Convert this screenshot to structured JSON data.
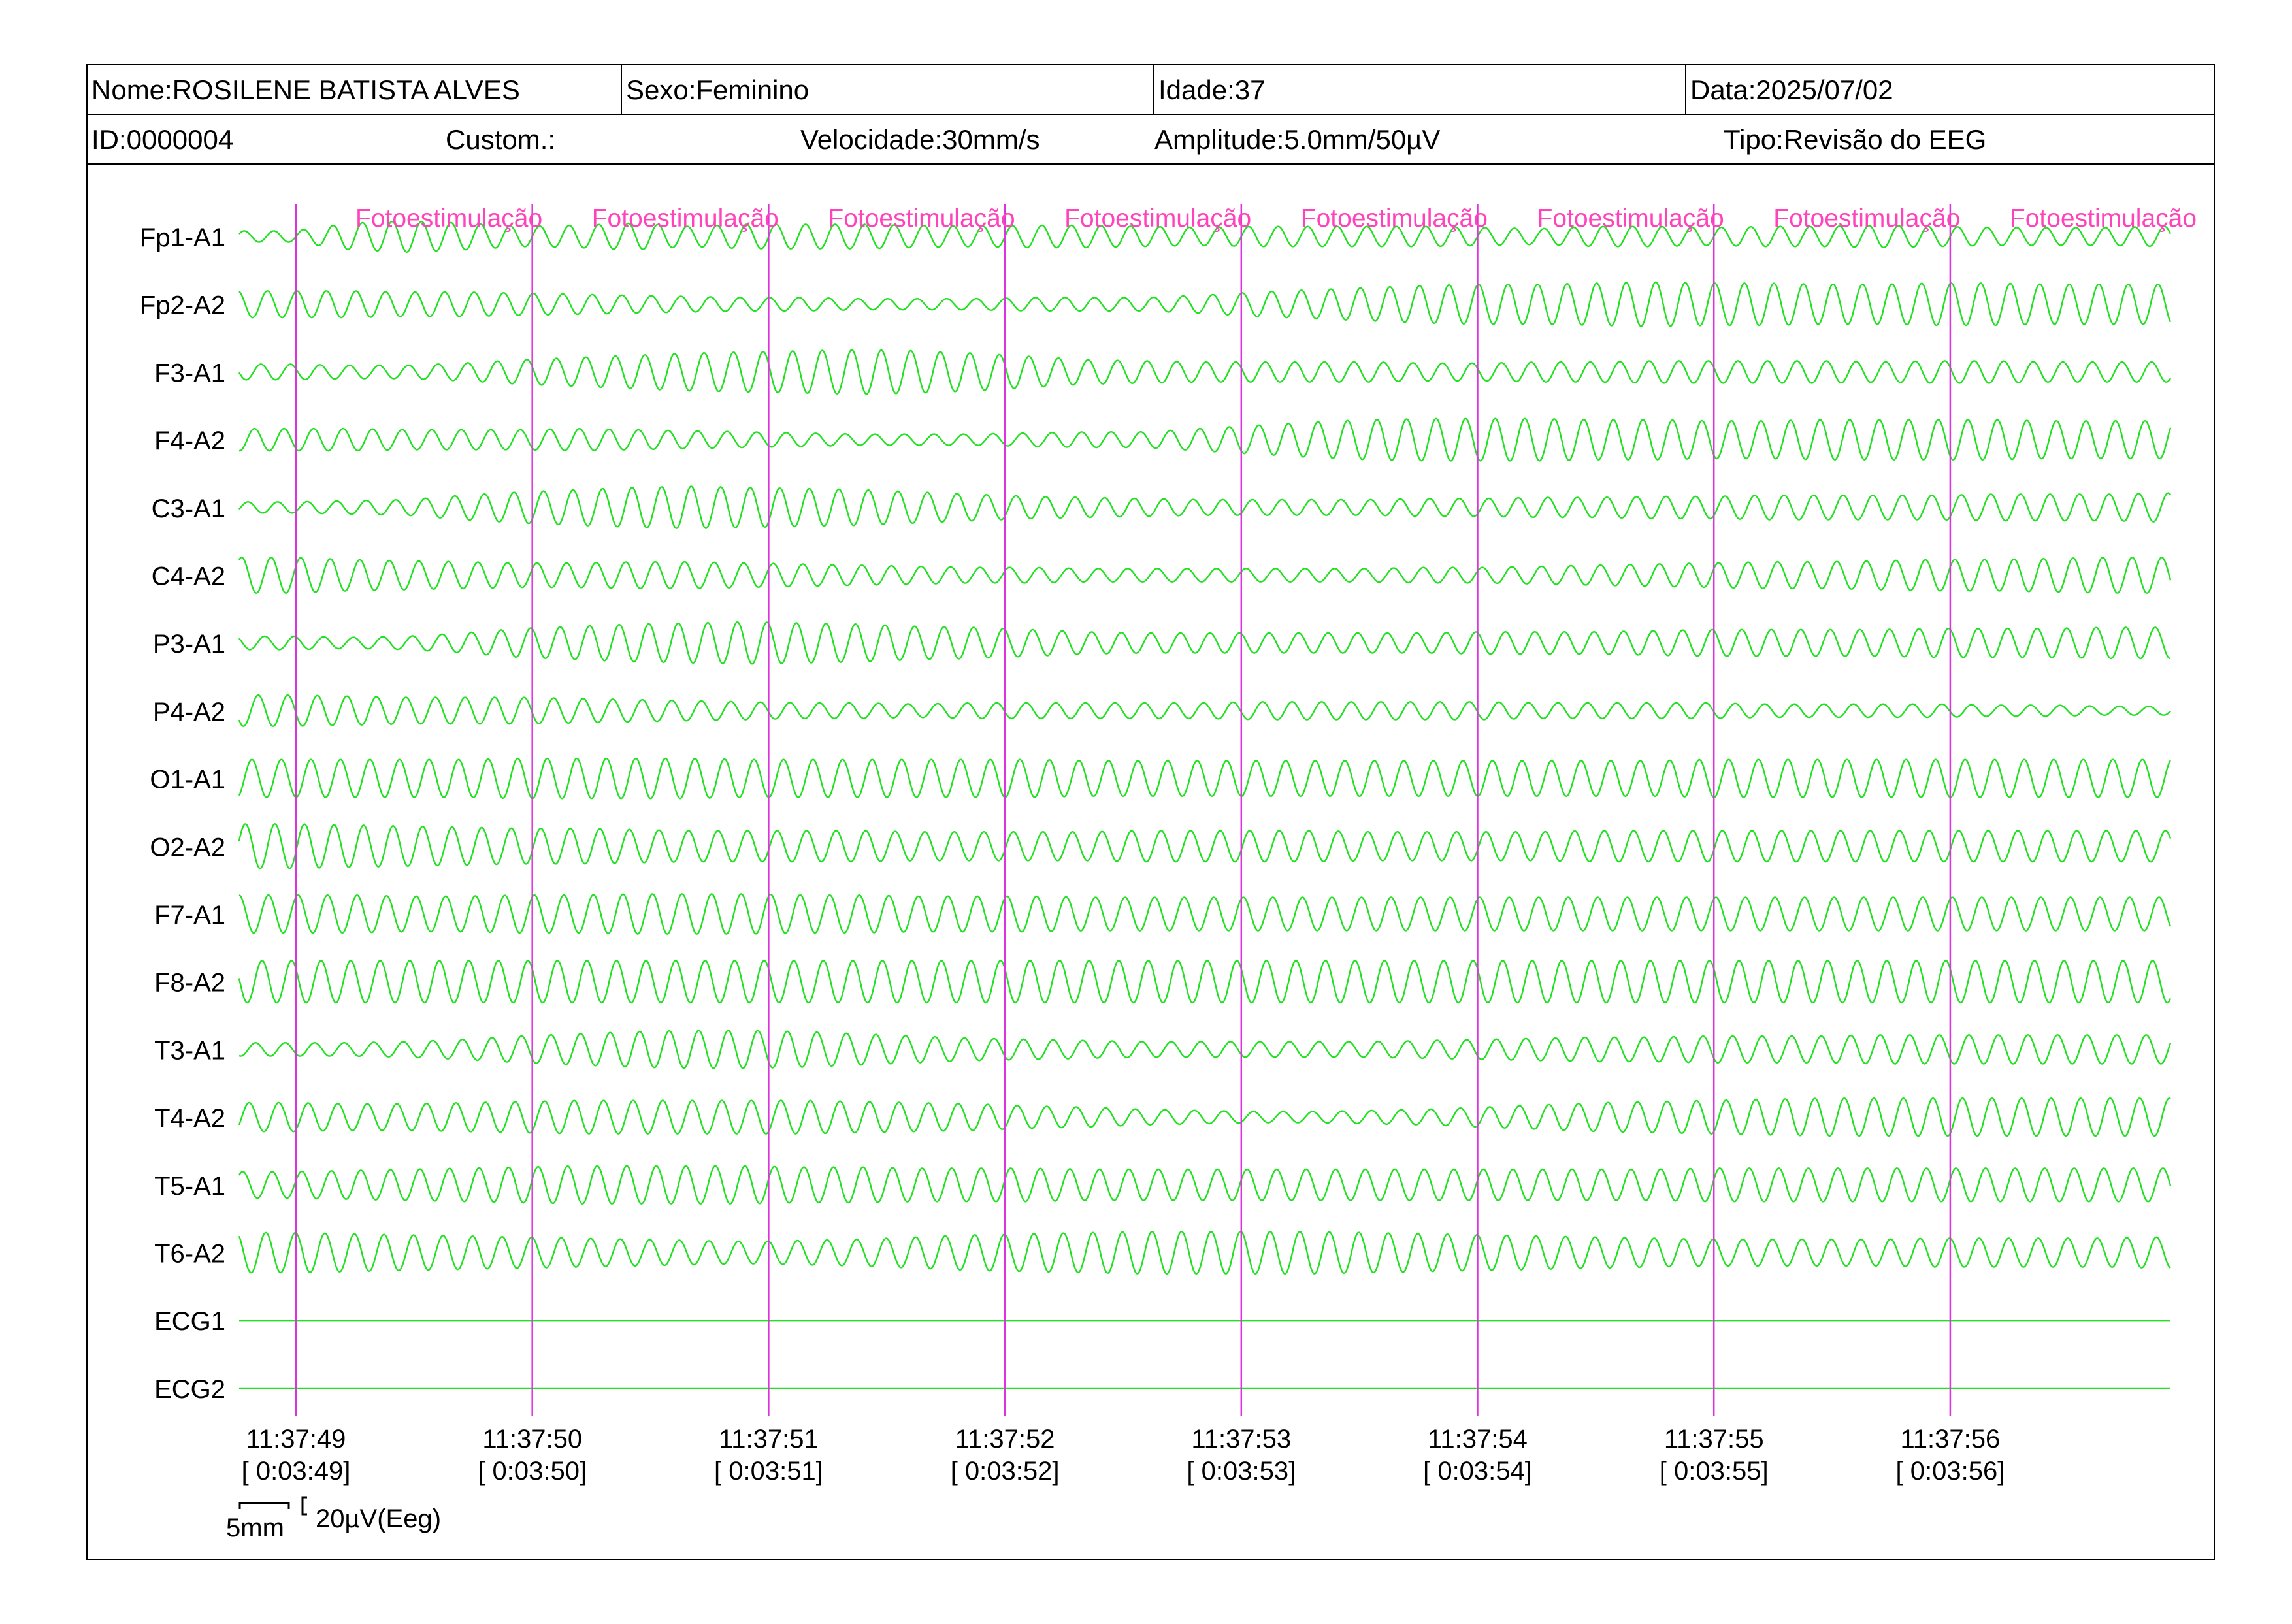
{
  "header": {
    "nome": "Nome:ROSILENE BATISTA ALVES",
    "sexo": "Sexo:Feminino",
    "idade": "Idade:37",
    "data": "Data:2025/07/02",
    "id": "ID:0000004",
    "custom": "Custom.:",
    "velocidade": "Velocidade:30mm/s",
    "amplitude": "Amplitude:5.0mm/50µV",
    "tipo": "Tipo:Revisão do EEG"
  },
  "colors": {
    "trace": "#22e022",
    "marker": "#dd33dd",
    "marker_label": "#ff44bb",
    "text": "#000000",
    "background": "#ffffff"
  },
  "chart_data": {
    "type": "line",
    "title": "",
    "xlabel": "",
    "ylabel": "",
    "channels": [
      "Fp1-A1",
      "Fp2-A2",
      "F3-A1",
      "F4-A2",
      "C3-A1",
      "C4-A2",
      "P3-A1",
      "P4-A2",
      "O1-A1",
      "O2-A2",
      "F7-A1",
      "F8-A2",
      "T3-A1",
      "T4-A2",
      "T5-A1",
      "T6-A2",
      "ECG1",
      "ECG2"
    ],
    "time_ticks": [
      {
        "clock": "11:37:49",
        "elapsed": "[ 0:03:49]"
      },
      {
        "clock": "11:37:50",
        "elapsed": "[ 0:03:50]"
      },
      {
        "clock": "11:37:51",
        "elapsed": "[ 0:03:51]"
      },
      {
        "clock": "11:37:52",
        "elapsed": "[ 0:03:52]"
      },
      {
        "clock": "11:37:53",
        "elapsed": "[ 0:03:53]"
      },
      {
        "clock": "11:37:54",
        "elapsed": "[ 0:03:54]"
      },
      {
        "clock": "11:37:55",
        "elapsed": "[ 0:03:55]"
      },
      {
        "clock": "11:37:56",
        "elapsed": "[ 0:03:56]"
      }
    ],
    "event_label": "Fotoestimulação",
    "scale_bar": {
      "time": "5mm",
      "amplitude": "20µV(Eeg)"
    },
    "waveform": {
      "frequency_hz": 8,
      "seconds_before_first_tick": 0.25,
      "seconds_after_last_tick": 0.9
    },
    "channel_amplitudes_relative": [
      [
        0.25,
        0.25,
        0.6,
        0.7,
        0.6,
        0.45,
        0.5,
        0.6,
        0.45,
        0.55,
        0.55,
        0.55,
        0.5,
        0.45,
        0.5,
        0.5,
        0.45,
        0.4,
        0.45,
        0.45,
        0.45,
        0.45,
        0.4,
        0.35,
        0.45,
        0.45,
        0.4,
        0.45,
        0.45,
        0.5,
        0.45,
        0.4,
        0.4,
        0.4,
        0.45
      ],
      [
        0.6,
        0.6,
        0.6,
        0.55,
        0.55,
        0.5,
        0.45,
        0.4,
        0.35,
        0.3,
        0.3,
        0.25,
        0.25,
        0.25,
        0.3,
        0.3,
        0.3,
        0.4,
        0.55,
        0.65,
        0.75,
        0.85,
        0.9,
        0.9,
        0.95,
        1.0,
        0.95,
        0.95,
        0.9,
        0.9,
        0.95,
        0.95,
        0.9,
        0.9,
        0.9
      ],
      [
        0.35,
        0.35,
        0.3,
        0.3,
        0.4,
        0.55,
        0.65,
        0.75,
        0.85,
        0.9,
        0.95,
        1.0,
        0.95,
        0.85,
        0.7,
        0.55,
        0.5,
        0.45,
        0.45,
        0.45,
        0.45,
        0.4,
        0.4,
        0.45,
        0.45,
        0.5,
        0.5,
        0.5,
        0.5,
        0.45,
        0.5,
        0.5,
        0.45,
        0.45,
        0.45
      ],
      [
        0.5,
        0.5,
        0.5,
        0.45,
        0.45,
        0.45,
        0.5,
        0.45,
        0.4,
        0.35,
        0.3,
        0.25,
        0.25,
        0.25,
        0.3,
        0.35,
        0.35,
        0.5,
        0.65,
        0.8,
        0.9,
        0.95,
        0.95,
        0.95,
        0.9,
        0.9,
        0.85,
        0.85,
        0.9,
        0.9,
        0.9,
        0.9,
        0.85,
        0.85,
        0.85
      ],
      [
        0.25,
        0.25,
        0.3,
        0.35,
        0.55,
        0.7,
        0.8,
        0.9,
        0.95,
        0.9,
        0.85,
        0.8,
        0.7,
        0.6,
        0.5,
        0.45,
        0.4,
        0.35,
        0.35,
        0.35,
        0.35,
        0.4,
        0.4,
        0.45,
        0.45,
        0.5,
        0.5,
        0.55,
        0.55,
        0.55,
        0.55,
        0.6,
        0.6,
        0.6,
        0.65
      ],
      [
        0.8,
        0.8,
        0.7,
        0.65,
        0.6,
        0.55,
        0.55,
        0.6,
        0.6,
        0.55,
        0.5,
        0.45,
        0.4,
        0.35,
        0.35,
        0.3,
        0.3,
        0.3,
        0.3,
        0.3,
        0.3,
        0.35,
        0.35,
        0.4,
        0.45,
        0.5,
        0.55,
        0.6,
        0.6,
        0.65,
        0.7,
        0.7,
        0.75,
        0.8,
        0.8
      ],
      [
        0.3,
        0.3,
        0.25,
        0.3,
        0.45,
        0.65,
        0.75,
        0.85,
        0.9,
        0.95,
        0.9,
        0.85,
        0.75,
        0.7,
        0.6,
        0.5,
        0.45,
        0.45,
        0.45,
        0.45,
        0.45,
        0.45,
        0.5,
        0.5,
        0.5,
        0.55,
        0.6,
        0.6,
        0.6,
        0.6,
        0.65,
        0.65,
        0.65,
        0.7,
        0.7
      ],
      [
        0.7,
        0.7,
        0.65,
        0.6,
        0.6,
        0.6,
        0.55,
        0.5,
        0.45,
        0.4,
        0.35,
        0.35,
        0.3,
        0.35,
        0.35,
        0.35,
        0.35,
        0.35,
        0.4,
        0.4,
        0.4,
        0.4,
        0.4,
        0.35,
        0.35,
        0.35,
        0.35,
        0.3,
        0.3,
        0.3,
        0.3,
        0.25,
        0.25,
        0.2,
        0.2
      ],
      [
        0.85,
        0.85,
        0.85,
        0.85,
        0.85,
        0.9,
        0.9,
        0.9,
        0.9,
        0.85,
        0.85,
        0.85,
        0.85,
        0.85,
        0.85,
        0.8,
        0.8,
        0.8,
        0.8,
        0.8,
        0.8,
        0.8,
        0.8,
        0.8,
        0.8,
        0.8,
        0.85,
        0.85,
        0.85,
        0.85,
        0.85,
        0.85,
        0.85,
        0.85,
        0.85
      ],
      [
        1.0,
        1.0,
        0.95,
        0.9,
        0.85,
        0.8,
        0.8,
        0.75,
        0.7,
        0.7,
        0.7,
        0.7,
        0.65,
        0.65,
        0.65,
        0.65,
        0.7,
        0.7,
        0.7,
        0.7,
        0.65,
        0.65,
        0.65,
        0.65,
        0.7,
        0.7,
        0.7,
        0.7,
        0.7,
        0.7,
        0.7,
        0.7,
        0.7,
        0.7,
        0.7
      ],
      [
        0.85,
        0.85,
        0.85,
        0.8,
        0.8,
        0.85,
        0.85,
        0.9,
        0.9,
        0.9,
        0.85,
        0.85,
        0.8,
        0.8,
        0.8,
        0.75,
        0.75,
        0.75,
        0.75,
        0.75,
        0.75,
        0.75,
        0.75,
        0.75,
        0.75,
        0.75,
        0.75,
        0.75,
        0.75,
        0.75,
        0.75,
        0.75,
        0.75,
        0.75,
        0.75
      ],
      [
        0.95,
        0.95,
        0.95,
        0.95,
        0.95,
        0.95,
        0.95,
        0.95,
        0.95,
        0.95,
        0.95,
        0.95,
        0.95,
        0.95,
        0.95,
        0.95,
        0.95,
        0.95,
        0.95,
        0.95,
        0.95,
        0.95,
        0.95,
        0.95,
        0.95,
        0.95,
        0.95,
        0.95,
        0.95,
        0.95,
        0.95,
        0.95,
        0.95,
        0.95,
        0.95
      ],
      [
        0.3,
        0.3,
        0.3,
        0.35,
        0.45,
        0.6,
        0.7,
        0.8,
        0.85,
        0.85,
        0.8,
        0.7,
        0.6,
        0.5,
        0.45,
        0.4,
        0.35,
        0.35,
        0.35,
        0.35,
        0.35,
        0.4,
        0.45,
        0.5,
        0.55,
        0.55,
        0.6,
        0.6,
        0.6,
        0.65,
        0.65,
        0.65,
        0.65,
        0.65,
        0.65
      ],
      [
        0.65,
        0.65,
        0.6,
        0.6,
        0.65,
        0.7,
        0.75,
        0.75,
        0.75,
        0.75,
        0.75,
        0.7,
        0.65,
        0.6,
        0.5,
        0.45,
        0.35,
        0.3,
        0.25,
        0.25,
        0.3,
        0.35,
        0.45,
        0.55,
        0.65,
        0.7,
        0.75,
        0.8,
        0.85,
        0.85,
        0.85,
        0.85,
        0.85,
        0.85,
        0.85
      ],
      [
        0.6,
        0.6,
        0.65,
        0.7,
        0.75,
        0.8,
        0.85,
        0.85,
        0.85,
        0.85,
        0.8,
        0.8,
        0.75,
        0.75,
        0.75,
        0.7,
        0.7,
        0.7,
        0.7,
        0.7,
        0.7,
        0.7,
        0.7,
        0.7,
        0.7,
        0.7,
        0.75,
        0.75,
        0.75,
        0.75,
        0.75,
        0.75,
        0.75,
        0.75,
        0.75
      ],
      [
        0.9,
        0.9,
        0.85,
        0.8,
        0.75,
        0.7,
        0.65,
        0.6,
        0.55,
        0.5,
        0.55,
        0.6,
        0.7,
        0.8,
        0.85,
        0.9,
        0.95,
        0.95,
        0.95,
        0.95,
        0.9,
        0.85,
        0.8,
        0.75,
        0.7,
        0.65,
        0.6,
        0.6,
        0.6,
        0.6,
        0.65,
        0.65,
        0.65,
        0.65,
        0.7
      ],
      [
        0,
        0,
        0,
        0,
        0,
        0,
        0,
        0,
        0,
        0,
        0,
        0,
        0,
        0,
        0,
        0,
        0,
        0,
        0,
        0,
        0,
        0,
        0,
        0,
        0,
        0,
        0,
        0,
        0,
        0,
        0,
        0,
        0,
        0,
        0
      ],
      [
        0,
        0,
        0,
        0,
        0,
        0,
        0,
        0,
        0,
        0,
        0,
        0,
        0,
        0,
        0,
        0,
        0,
        0,
        0,
        0,
        0,
        0,
        0,
        0,
        0,
        0,
        0,
        0,
        0,
        0,
        0,
        0,
        0,
        0,
        0
      ]
    ]
  }
}
